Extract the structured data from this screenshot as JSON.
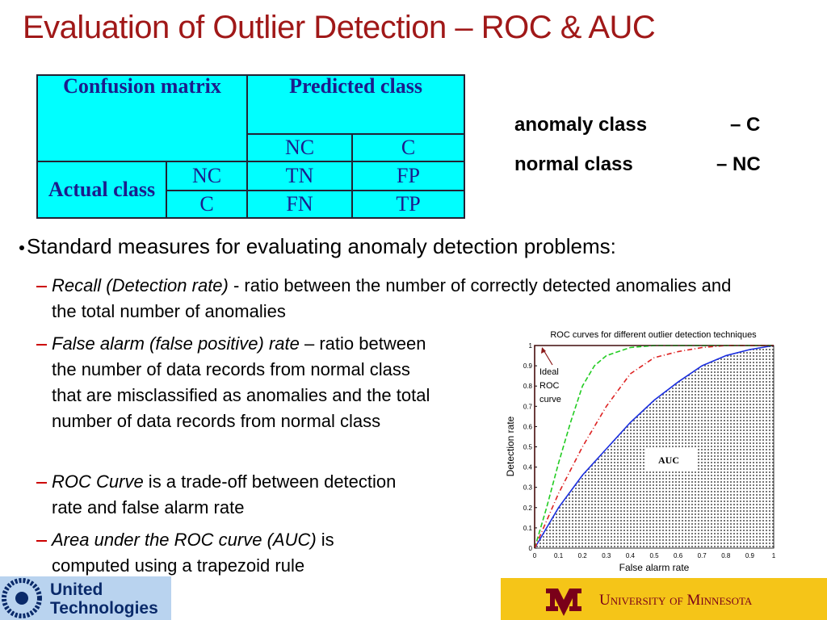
{
  "header": {
    "title": "Evaluation of Outlier Detection – ROC & AUC"
  },
  "table": {
    "rows": [
      [
        "Confusion matrix",
        "Predicted class"
      ],
      [
        "NC",
        "C"
      ],
      [
        "Actual class",
        "NC",
        "TN",
        "FP"
      ],
      [
        "C",
        "FN",
        "TP"
      ]
    ]
  },
  "classes": [
    {
      "name": "anomaly class",
      "code": "– C"
    },
    {
      "name": "normal class",
      "code": "– NC"
    }
  ],
  "bullets": {
    "main": "Standard measures for evaluating anomaly detection problems:",
    "items": [
      {
        "term": "Recall (Detection rate)",
        "text": " - ratio between the number of correctly detected anomalies and the total number of anomalies"
      },
      {
        "term": "False alarm (false positive) rate",
        "text": " – ratio between the number of data records from normal class that are misclassified as anomalies and the total number of data records from normal class"
      },
      {
        "term": "ROC Curve",
        "text": " is a trade-off between detection rate and false alarm rate"
      },
      {
        "term": "Area under the ROC curve (AUC)",
        "text": " is computed using a trapezoid  rule"
      }
    ]
  },
  "chart_data": {
    "type": "line",
    "title": "ROC curves for different outlier detection techniques",
    "x_label": "False alarm rate",
    "y_label": "Detection rate",
    "xlim": [
      0,
      1
    ],
    "ylim": [
      0,
      1
    ],
    "xticks": [
      0,
      0.1,
      0.2,
      0.3,
      0.4,
      0.5,
      0.6,
      0.7,
      0.8,
      0.9,
      1
    ],
    "yticks": [
      0,
      0.1,
      0.2,
      0.3,
      0.4,
      0.5,
      0.6,
      0.7,
      0.8,
      0.9,
      1
    ],
    "series": [
      {
        "color": "#8b1a1a",
        "dash": "solid",
        "x": [
          0,
          0,
          1
        ],
        "values": [
          0,
          1,
          1
        ]
      },
      {
        "color": "#22cc22",
        "dash": "dashed",
        "x": [
          0,
          0.05,
          0.1,
          0.15,
          0.2,
          0.25,
          0.3,
          0.4,
          0.5,
          1
        ],
        "values": [
          0,
          0.2,
          0.42,
          0.62,
          0.8,
          0.9,
          0.95,
          0.99,
          1,
          1
        ]
      },
      {
        "color": "#dd2222",
        "dash": "dashdot",
        "x": [
          0,
          0.1,
          0.2,
          0.3,
          0.4,
          0.5,
          0.6,
          0.7,
          0.8,
          1
        ],
        "values": [
          0,
          0.27,
          0.5,
          0.7,
          0.86,
          0.94,
          0.97,
          0.99,
          1,
          1
        ]
      },
      {
        "color": "#1a2ee0",
        "dash": "solid",
        "fill_under": true,
        "x": [
          0,
          0.1,
          0.2,
          0.3,
          0.4,
          0.5,
          0.6,
          0.7,
          0.8,
          0.9,
          1
        ],
        "values": [
          0,
          0.2,
          0.36,
          0.49,
          0.62,
          0.73,
          0.82,
          0.9,
          0.95,
          0.98,
          1
        ]
      }
    ],
    "annotations": [
      {
        "lines": [
          "Ideal",
          "ROC",
          "curve"
        ]
      },
      {
        "lines": [
          "AUC"
        ]
      }
    ]
  },
  "footer": {
    "left_logo": [
      "United",
      "Technologies"
    ],
    "right_logo": "University of Minnesota"
  }
}
